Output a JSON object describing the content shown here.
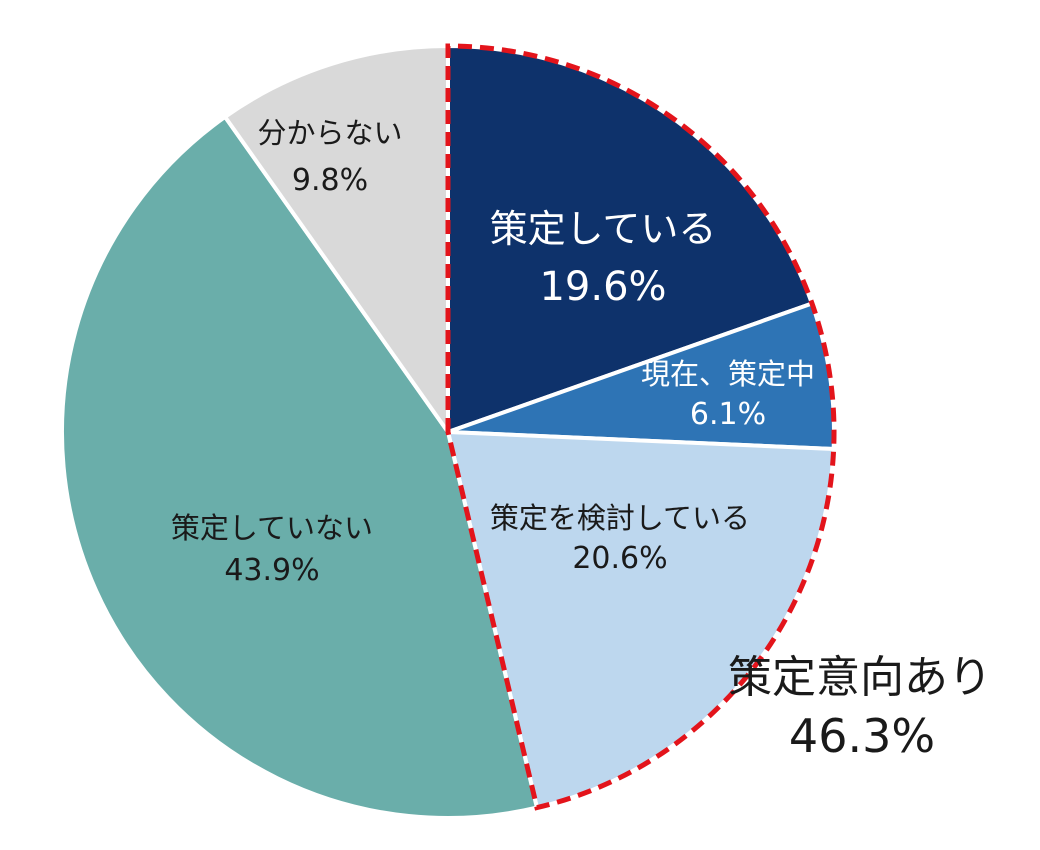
{
  "chart_data": {
    "type": "pie",
    "slices": [
      {
        "label": "策定している",
        "value_label": "19.6%",
        "value": 19.6,
        "color": "#0e326b",
        "text_color": "#ffffff"
      },
      {
        "label": "現在、策定中",
        "value_label": "6.1%",
        "value": 6.1,
        "color": "#2e74b5",
        "text_color": "#ffffff"
      },
      {
        "label": "策定を検討している",
        "value_label": "20.6%",
        "value": 20.6,
        "color": "#bdd7ee",
        "text_color": "#1a1a1a"
      },
      {
        "label": "策定していない",
        "value_label": "43.9%",
        "value": 43.9,
        "color": "#6aaeaa",
        "text_color": "#1a1a1a"
      },
      {
        "label": "分からない",
        "value_label": "9.8%",
        "value": 9.8,
        "color": "#d9d9d9",
        "text_color": "#1a1a1a"
      }
    ],
    "group_annotation": {
      "label": "策定意向あり",
      "value_label": "46.3%",
      "value": 46.3,
      "outline_color": "#e3141b"
    }
  }
}
